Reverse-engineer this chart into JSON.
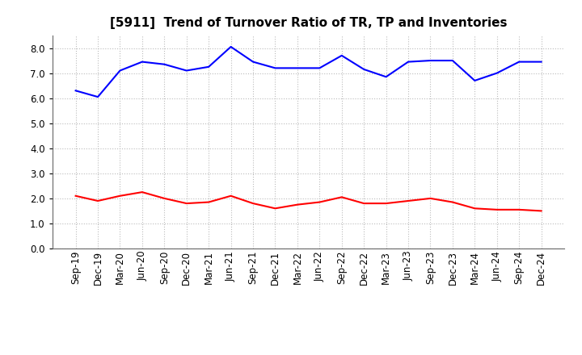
{
  "title": "[5911]  Trend of Turnover Ratio of TR, TP and Inventories",
  "x_labels": [
    "Sep-19",
    "Dec-19",
    "Mar-20",
    "Jun-20",
    "Sep-20",
    "Dec-20",
    "Mar-21",
    "Jun-21",
    "Sep-21",
    "Dec-21",
    "Mar-22",
    "Jun-22",
    "Sep-22",
    "Dec-22",
    "Mar-23",
    "Jun-23",
    "Sep-23",
    "Dec-23",
    "Mar-24",
    "Jun-24",
    "Sep-24",
    "Dec-24"
  ],
  "trade_receivables": [
    2.1,
    1.9,
    2.1,
    2.25,
    2.0,
    1.8,
    1.85,
    2.1,
    1.8,
    1.6,
    1.75,
    1.85,
    2.05,
    1.8,
    1.8,
    1.9,
    2.0,
    1.85,
    1.6,
    1.55,
    1.55,
    1.5
  ],
  "trade_payables": [
    6.3,
    6.05,
    7.1,
    7.45,
    7.35,
    7.1,
    7.25,
    8.05,
    7.45,
    7.2,
    7.2,
    7.2,
    7.7,
    7.15,
    6.85,
    7.45,
    7.5,
    7.5,
    6.7,
    7.0,
    7.45,
    7.45
  ],
  "inventories": [
    null,
    null,
    null,
    null,
    null,
    null,
    null,
    null,
    null,
    null,
    null,
    null,
    null,
    null,
    null,
    null,
    null,
    null,
    null,
    null,
    null,
    null
  ],
  "tr_color": "#ff0000",
  "tp_color": "#0000ff",
  "inv_color": "#008000",
  "ylim": [
    0.0,
    8.5
  ],
  "yticks": [
    0.0,
    1.0,
    2.0,
    3.0,
    4.0,
    5.0,
    6.0,
    7.0,
    8.0
  ],
  "background_color": "#ffffff",
  "grid_color": "#bbbbbb",
  "title_fontsize": 11,
  "tick_fontsize": 8.5,
  "legend_fontsize": 9
}
